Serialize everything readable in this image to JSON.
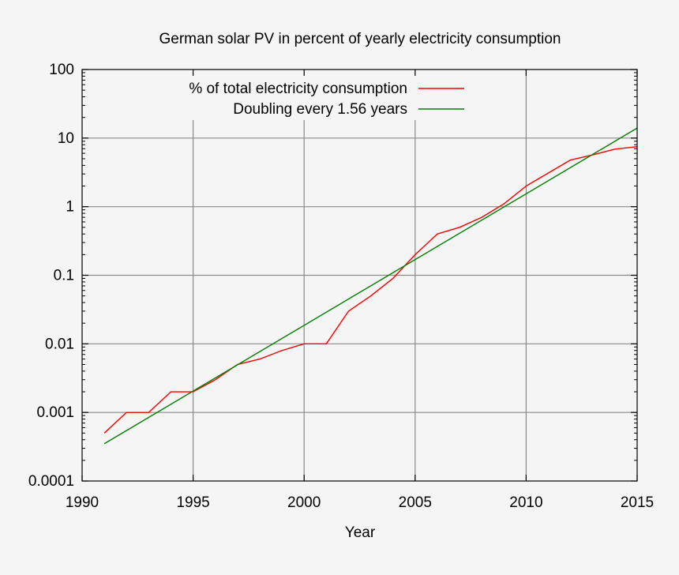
{
  "chart_data": {
    "type": "line",
    "title": "German solar PV in percent of yearly electricity consumption",
    "xlabel": "Year",
    "ylabel": "",
    "xlim": [
      1990,
      2015
    ],
    "ylim": [
      0.0001,
      100
    ],
    "y_scale": "log",
    "x_ticks": [
      "1990",
      "1995",
      "2000",
      "2005",
      "2010",
      "2015"
    ],
    "y_ticks": [
      "100",
      "10",
      "1",
      "0.1",
      "0.01",
      "0.001",
      "0.0001"
    ],
    "grid": true,
    "legend_position": "top-right",
    "series": [
      {
        "name": "% of total electricity consumption",
        "color": "#ff0000",
        "x": [
          1991,
          1992,
          1993,
          1994,
          1995,
          1996,
          1997,
          1998,
          1999,
          2000,
          2001,
          2002,
          2003,
          2004,
          2005,
          2006,
          2007,
          2008,
          2009,
          2010,
          2011,
          2012,
          2013,
          2014,
          2015
        ],
        "y": [
          0.0005,
          0.001,
          0.001,
          0.002,
          0.002,
          0.003,
          0.005,
          0.006,
          0.008,
          0.01,
          0.01,
          0.03,
          0.05,
          0.09,
          0.2,
          0.4,
          0.5,
          0.7,
          1.1,
          2.0,
          3.1,
          4.8,
          5.7,
          6.9,
          7.5
        ]
      },
      {
        "name": "Doubling every 1.56 years",
        "color": "#008000",
        "x": [
          1991,
          2015
        ],
        "y": [
          0.00035,
          14
        ]
      }
    ]
  }
}
